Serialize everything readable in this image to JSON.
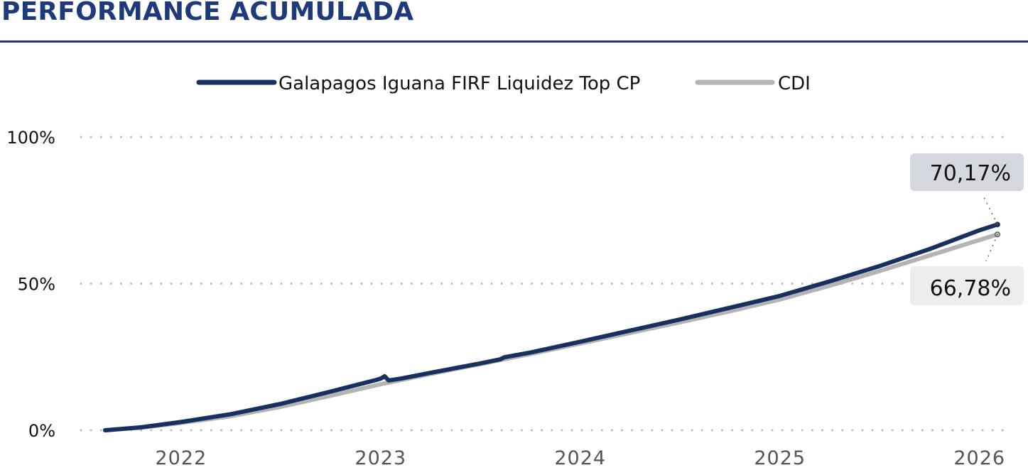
{
  "page": {
    "title": "PERFORMANCE ACUMULADA",
    "accent_color": "#1f3a7a"
  },
  "chart_data": {
    "type": "line",
    "title": "PERFORMANCE ACUMULADA",
    "xlabel": "",
    "ylabel": "",
    "xlim": [
      2021.62,
      2026.09
    ],
    "ylim": [
      0,
      100
    ],
    "y_ticks": [
      "0%",
      "50%",
      "100%"
    ],
    "y_tick_values": [
      0,
      50,
      100
    ],
    "x_ticks": [
      "2022",
      "2023",
      "2024",
      "2025",
      "2026"
    ],
    "x_tick_values": [
      2022,
      2023,
      2024,
      2025,
      2026
    ],
    "grid": "horizontal dotted",
    "legend_position": "top-center",
    "series": [
      {
        "name": "Galapagos Iguana FIRF Liquidez Top CP",
        "color": "#17305f",
        "end_label": "70,17%",
        "points": [
          [
            2021.62,
            0.0
          ],
          [
            2021.8,
            1.0
          ],
          [
            2022.0,
            2.8
          ],
          [
            2022.25,
            5.5
          ],
          [
            2022.5,
            9.0
          ],
          [
            2022.75,
            13.2
          ],
          [
            2022.98,
            17.2
          ],
          [
            2023.0,
            17.6
          ],
          [
            2023.02,
            18.4
          ],
          [
            2023.04,
            17.0
          ],
          [
            2023.1,
            17.6
          ],
          [
            2023.25,
            19.6
          ],
          [
            2023.5,
            22.8
          ],
          [
            2023.6,
            24.2
          ],
          [
            2023.62,
            24.9
          ],
          [
            2023.75,
            26.5
          ],
          [
            2024.0,
            30.2
          ],
          [
            2024.25,
            34.0
          ],
          [
            2024.5,
            37.8
          ],
          [
            2024.75,
            41.8
          ],
          [
            2025.0,
            45.8
          ],
          [
            2025.25,
            50.8
          ],
          [
            2025.5,
            56.0
          ],
          [
            2025.75,
            61.8
          ],
          [
            2026.0,
            68.2
          ],
          [
            2026.09,
            70.17
          ]
        ]
      },
      {
        "name": "CDI",
        "color": "#b4b4b4",
        "end_label": "66,78%",
        "points": [
          [
            2021.62,
            0.0
          ],
          [
            2021.8,
            0.9
          ],
          [
            2022.0,
            2.5
          ],
          [
            2022.25,
            4.8
          ],
          [
            2022.5,
            8.0
          ],
          [
            2022.75,
            11.8
          ],
          [
            2023.0,
            15.7
          ],
          [
            2023.25,
            19.2
          ],
          [
            2023.5,
            22.6
          ],
          [
            2023.75,
            26.0
          ],
          [
            2024.0,
            29.6
          ],
          [
            2024.25,
            33.2
          ],
          [
            2024.5,
            36.8
          ],
          [
            2024.75,
            40.6
          ],
          [
            2025.0,
            44.6
          ],
          [
            2025.25,
            49.3
          ],
          [
            2025.5,
            54.3
          ],
          [
            2025.75,
            59.6
          ],
          [
            2026.0,
            64.9
          ],
          [
            2026.09,
            66.78
          ]
        ]
      }
    ]
  }
}
